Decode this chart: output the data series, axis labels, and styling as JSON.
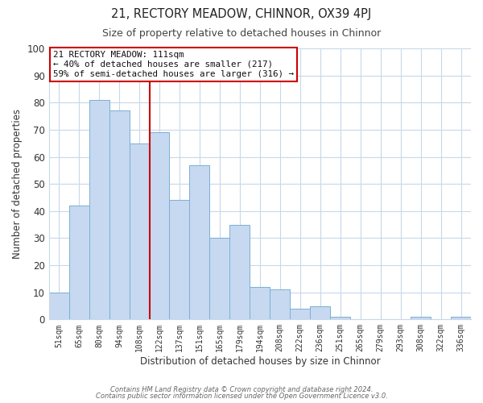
{
  "title": "21, RECTORY MEADOW, CHINNOR, OX39 4PJ",
  "subtitle": "Size of property relative to detached houses in Chinnor",
  "xlabel": "Distribution of detached houses by size in Chinnor",
  "ylabel": "Number of detached properties",
  "categories": [
    "51sqm",
    "65sqm",
    "80sqm",
    "94sqm",
    "108sqm",
    "122sqm",
    "137sqm",
    "151sqm",
    "165sqm",
    "179sqm",
    "194sqm",
    "208sqm",
    "222sqm",
    "236sqm",
    "251sqm",
    "265sqm",
    "279sqm",
    "293sqm",
    "308sqm",
    "322sqm",
    "336sqm"
  ],
  "values": [
    10,
    42,
    81,
    77,
    65,
    69,
    44,
    57,
    30,
    35,
    12,
    11,
    4,
    5,
    1,
    0,
    0,
    0,
    1,
    0,
    1
  ],
  "bar_color": "#c6d9f0",
  "bar_edge_color": "#7bafd4",
  "marker_index": 4,
  "marker_color": "#cc0000",
  "annotation_title": "21 RECTORY MEADOW: 111sqm",
  "annotation_line1": "← 40% of detached houses are smaller (217)",
  "annotation_line2": "59% of semi-detached houses are larger (316) →",
  "annotation_box_color": "#ffffff",
  "annotation_box_edge": "#cc0000",
  "ylim": [
    0,
    100
  ],
  "yticks": [
    0,
    10,
    20,
    30,
    40,
    50,
    60,
    70,
    80,
    90,
    100
  ],
  "footer1": "Contains HM Land Registry data © Crown copyright and database right 2024.",
  "footer2": "Contains public sector information licensed under the Open Government Licence v3.0.",
  "background_color": "#ffffff",
  "grid_color": "#c8d8ea"
}
